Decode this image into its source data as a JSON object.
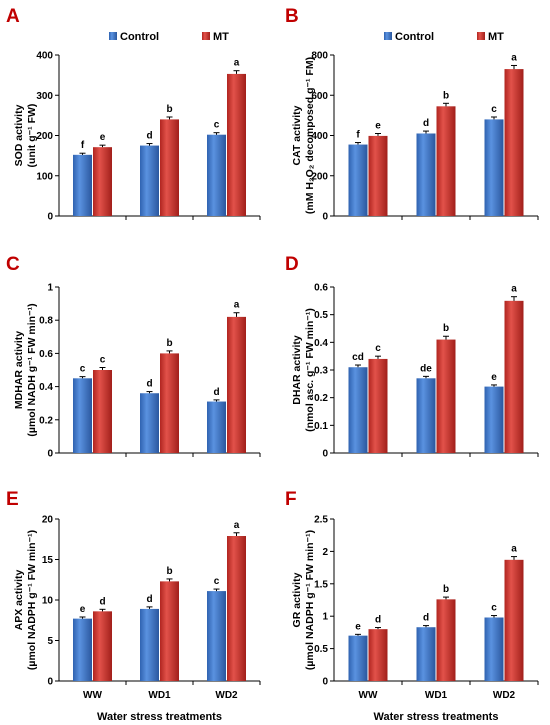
{
  "colors": {
    "control": "#3f78c9",
    "control_dark": "#22508f",
    "mt": "#d43a33",
    "mt_dark": "#8c1a16",
    "panel_letter": "#c00000"
  },
  "chart_data": [
    {
      "panel": "A",
      "type": "bar",
      "categories": [
        "WW",
        "WD1",
        "WD2"
      ],
      "series": [
        {
          "name": "Control",
          "values": [
            152,
            175,
            202
          ],
          "errors": [
            4,
            5,
            5
          ],
          "labels": [
            "f",
            "d",
            "c"
          ]
        },
        {
          "name": "MT",
          "values": [
            171,
            240,
            353
          ],
          "errors": [
            5,
            6,
            8
          ],
          "labels": [
            "e",
            "b",
            "a"
          ]
        }
      ],
      "ylim": [
        0,
        400
      ],
      "yticks": [
        "0",
        "100",
        "200",
        "300",
        "400"
      ],
      "ylabel_lines": [
        "SOD activity",
        "(unit g⁻¹ FW)"
      ],
      "legend": [
        "Control",
        "MT"
      ],
      "legend_position": "top"
    },
    {
      "panel": "B",
      "type": "bar",
      "categories": [
        "WW",
        "WD1",
        "WD2"
      ],
      "series": [
        {
          "name": "Control",
          "values": [
            355,
            410,
            480
          ],
          "errors": [
            10,
            12,
            12
          ],
          "labels": [
            "f",
            "d",
            "c"
          ]
        },
        {
          "name": "MT",
          "values": [
            398,
            545,
            730
          ],
          "errors": [
            12,
            15,
            18
          ],
          "labels": [
            "e",
            "b",
            "a"
          ]
        }
      ],
      "ylim": [
        0,
        800
      ],
      "yticks": [
        "0",
        "200",
        "400",
        "600",
        "800"
      ],
      "ylabel_lines": [
        "CAT activity",
        "(mM H₂O₂ decomposed g⁻¹ FM)"
      ],
      "legend": [
        "Control",
        "MT"
      ],
      "legend_position": "top"
    },
    {
      "panel": "C",
      "type": "bar",
      "categories": [
        "WW",
        "WD1",
        "WD2"
      ],
      "series": [
        {
          "name": "Control",
          "values": [
            0.45,
            0.36,
            0.31
          ],
          "errors": [
            0.01,
            0.01,
            0.01
          ],
          "labels": [
            "c",
            "d",
            "d"
          ]
        },
        {
          "name": "MT",
          "values": [
            0.5,
            0.6,
            0.82
          ],
          "errors": [
            0.015,
            0.015,
            0.025
          ],
          "labels": [
            "c",
            "b",
            "a"
          ]
        }
      ],
      "ylim": [
        0,
        1
      ],
      "yticks": [
        "0",
        "0.2",
        "0.4",
        "0.6",
        "0.8",
        "1"
      ],
      "ylabel_lines": [
        "MDHAR activity",
        "(µmol NADH g⁻¹ FW min⁻¹)"
      ]
    },
    {
      "panel": "D",
      "type": "bar",
      "categories": [
        "WW",
        "WD1",
        "WD2"
      ],
      "series": [
        {
          "name": "Control",
          "values": [
            0.31,
            0.27,
            0.24
          ],
          "errors": [
            0.008,
            0.007,
            0.006
          ],
          "labels": [
            "cd",
            "de",
            "e"
          ]
        },
        {
          "name": "MT",
          "values": [
            0.34,
            0.41,
            0.55
          ],
          "errors": [
            0.01,
            0.012,
            0.015
          ],
          "labels": [
            "c",
            "b",
            "a"
          ]
        }
      ],
      "ylim": [
        0,
        0.6
      ],
      "yticks": [
        "0",
        "0.1",
        "0.2",
        "0.3",
        "0.4",
        "0.5",
        "0.6"
      ],
      "ylabel_lines": [
        "DHAR activity",
        "(nmol asc. g⁻¹ FW min⁻¹)"
      ]
    },
    {
      "panel": "E",
      "type": "bar",
      "categories": [
        "WW",
        "WD1",
        "WD2"
      ],
      "series": [
        {
          "name": "Control",
          "values": [
            7.7,
            8.9,
            11.1
          ],
          "errors": [
            0.2,
            0.25,
            0.25
          ],
          "labels": [
            "e",
            "d",
            "c"
          ]
        },
        {
          "name": "MT",
          "values": [
            8.6,
            12.3,
            17.9
          ],
          "errors": [
            0.25,
            0.3,
            0.4
          ],
          "labels": [
            "d",
            "b",
            "a"
          ]
        }
      ],
      "ylim": [
        0,
        20
      ],
      "yticks": [
        "0",
        "5",
        "10",
        "15",
        "20"
      ],
      "ylabel_lines": [
        "APX activity",
        "(µmol NADPH g⁻¹ FW min⁻¹)"
      ],
      "xlabel": "Water stress treatments"
    },
    {
      "panel": "F",
      "type": "bar",
      "categories": [
        "WW",
        "WD1",
        "WD2"
      ],
      "series": [
        {
          "name": "Control",
          "values": [
            0.7,
            0.83,
            0.98
          ],
          "errors": [
            0.02,
            0.025,
            0.03
          ],
          "labels": [
            "e",
            "d",
            "c"
          ]
        },
        {
          "name": "MT",
          "values": [
            0.8,
            1.26,
            1.87
          ],
          "errors": [
            0.025,
            0.035,
            0.05
          ],
          "labels": [
            "d",
            "b",
            "a"
          ]
        }
      ],
      "ylim": [
        0,
        2.5
      ],
      "yticks": [
        "0",
        "0.5",
        "1",
        "1.5",
        "2",
        "2.5"
      ],
      "ylabel_lines": [
        "GR activity",
        "(µmol NADPH g⁻¹ FW min⁻¹)"
      ],
      "xlabel": "Water stress treatments"
    }
  ]
}
